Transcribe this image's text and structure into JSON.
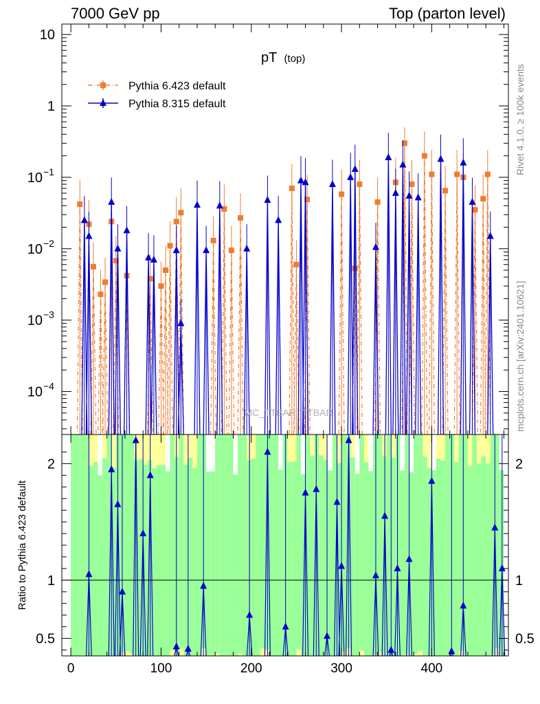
{
  "header": {
    "energy_label": "7000 GeV pp",
    "process_label": "Top (parton level)"
  },
  "side_text": {
    "rivet": "Rivet 4.1.0, ≥ 100k events",
    "site": "mcplots.cern.ch [arXiv:2401.10621]"
  },
  "chart_data": {
    "type": "line",
    "title_main": "pT",
    "title_sub": "(top)",
    "watermark": "MC_TTBAR_TTBAR",
    "xlabel": "",
    "ylabel_ratio": "Ratio to Pythia 6.423 default",
    "xlim": [
      -10,
      485
    ],
    "ylim_main": [
      2.5e-05,
      14
    ],
    "ylim_ratio": [
      0.35,
      2.25
    ],
    "y_scale_main": "log",
    "x_ticks": [
      0,
      100,
      200,
      300,
      400
    ],
    "x_tick_labels": [
      "0",
      "100",
      "200",
      "300",
      "400"
    ],
    "y_ticks_main": [
      0.0001,
      0.001,
      0.01,
      0.1,
      1,
      10
    ],
    "y_tick_labels_main": [
      {
        "base": "10",
        "exp": "−4"
      },
      {
        "base": "10",
        "exp": "−3"
      },
      {
        "base": "10",
        "exp": "−2"
      },
      {
        "base": "10",
        "exp": "−1"
      },
      {
        "base": "1",
        "exp": ""
      },
      {
        "base": "10",
        "exp": ""
      }
    ],
    "y_ticks_ratio": [
      0.5,
      1,
      2
    ],
    "y_tick_labels_ratio": [
      "0.5",
      "1",
      "2"
    ],
    "legend_position": "top-left",
    "series": [
      {
        "name": "Pythia 6.423 default",
        "color": "#f07c30",
        "marker": "square",
        "line": "dash-dot",
        "points": [
          {
            "x": 10,
            "y": 0.042
          },
          {
            "x": 20,
            "y": 0.022
          },
          {
            "x": 25,
            "y": 0.0056
          },
          {
            "x": 33,
            "y": 0.0023
          },
          {
            "x": 38,
            "y": 0.0034
          },
          {
            "x": 45,
            "y": 0.024
          },
          {
            "x": 50,
            "y": 0.0068
          },
          {
            "x": 62,
            "y": 0.0042
          },
          {
            "x": 88,
            "y": 0.0038
          },
          {
            "x": 100,
            "y": 0.003
          },
          {
            "x": 105,
            "y": 0.005
          },
          {
            "x": 110,
            "y": 0.011
          },
          {
            "x": 117,
            "y": 0.024
          },
          {
            "x": 122,
            "y": 0.032
          },
          {
            "x": 158,
            "y": 0.013
          },
          {
            "x": 170,
            "y": 0.036
          },
          {
            "x": 178,
            "y": 0.0095
          },
          {
            "x": 188,
            "y": 0.027
          },
          {
            "x": 245,
            "y": 0.07
          },
          {
            "x": 250,
            "y": 0.006
          },
          {
            "x": 262,
            "y": 0.049
          },
          {
            "x": 300,
            "y": 0.058
          },
          {
            "x": 315,
            "y": 0.0053
          },
          {
            "x": 320,
            "y": 0.08
          },
          {
            "x": 340,
            "y": 0.045
          },
          {
            "x": 360,
            "y": 0.085
          },
          {
            "x": 370,
            "y": 0.3
          },
          {
            "x": 378,
            "y": 0.08
          },
          {
            "x": 392,
            "y": 0.2
          },
          {
            "x": 400,
            "y": 0.11
          },
          {
            "x": 415,
            "y": 0.065
          },
          {
            "x": 428,
            "y": 0.11
          },
          {
            "x": 435,
            "y": 0.1
          },
          {
            "x": 448,
            "y": 0.035
          },
          {
            "x": 457,
            "y": 0.05
          },
          {
            "x": 462,
            "y": 0.11
          }
        ]
      },
      {
        "name": "Pythia 8.315 default",
        "color": "#0000cc",
        "marker": "triangle",
        "line": "solid",
        "points": [
          {
            "x": 15,
            "y": 0.025
          },
          {
            "x": 20,
            "y": 0.015
          },
          {
            "x": 45,
            "y": 0.045
          },
          {
            "x": 52,
            "y": 0.01
          },
          {
            "x": 62,
            "y": 0.018
          },
          {
            "x": 86,
            "y": 0.0075
          },
          {
            "x": 92,
            "y": 0.007
          },
          {
            "x": 117,
            "y": 0.0095
          },
          {
            "x": 122,
            "y": 0.0009
          },
          {
            "x": 140,
            "y": 0.041
          },
          {
            "x": 150,
            "y": 0.0095
          },
          {
            "x": 165,
            "y": 0.04
          },
          {
            "x": 195,
            "y": 0.01
          },
          {
            "x": 218,
            "y": 0.048
          },
          {
            "x": 230,
            "y": 0.025
          },
          {
            "x": 255,
            "y": 0.09
          },
          {
            "x": 260,
            "y": 0.085
          },
          {
            "x": 290,
            "y": 0.08
          },
          {
            "x": 310,
            "y": 0.1
          },
          {
            "x": 315,
            "y": 0.13
          },
          {
            "x": 338,
            "y": 0.0105
          },
          {
            "x": 352,
            "y": 0.19
          },
          {
            "x": 360,
            "y": 0.06
          },
          {
            "x": 368,
            "y": 0.15
          },
          {
            "x": 375,
            "y": 0.055
          },
          {
            "x": 385,
            "y": 0.052
          },
          {
            "x": 410,
            "y": 0.18
          },
          {
            "x": 435,
            "y": 0.16
          },
          {
            "x": 445,
            "y": 0.045
          },
          {
            "x": 465,
            "y": 0.015
          }
        ]
      }
    ],
    "ratio_points": [
      {
        "x": 20,
        "y": 1.05
      },
      {
        "x": 45,
        "y": 1.95
      },
      {
        "x": 52,
        "y": 1.65
      },
      {
        "x": 57,
        "y": 0.9
      },
      {
        "x": 72,
        "y": 2.2
      },
      {
        "x": 88,
        "y": 1.9
      },
      {
        "x": 80,
        "y": 1.4
      },
      {
        "x": 117,
        "y": 0.43
      },
      {
        "x": 130,
        "y": 0.41
      },
      {
        "x": 147,
        "y": 0.95
      },
      {
        "x": 198,
        "y": 0.7
      },
      {
        "x": 218,
        "y": 2.1
      },
      {
        "x": 238,
        "y": 0.6
      },
      {
        "x": 260,
        "y": 1.75
      },
      {
        "x": 272,
        "y": 1.78
      },
      {
        "x": 284,
        "y": 0.52
      },
      {
        "x": 295,
        "y": 1.67
      },
      {
        "x": 300,
        "y": 1.12
      },
      {
        "x": 308,
        "y": 2.2
      },
      {
        "x": 338,
        "y": 1.04
      },
      {
        "x": 348,
        "y": 1.55
      },
      {
        "x": 355,
        "y": 0.4
      },
      {
        "x": 362,
        "y": 1.1
      },
      {
        "x": 375,
        "y": 1.18
      },
      {
        "x": 400,
        "y": 1.85
      },
      {
        "x": 422,
        "y": 0.39
      },
      {
        "x": 435,
        "y": 0.78
      },
      {
        "x": 470,
        "y": 1.45
      },
      {
        "x": 478,
        "y": 1.1
      }
    ]
  }
}
